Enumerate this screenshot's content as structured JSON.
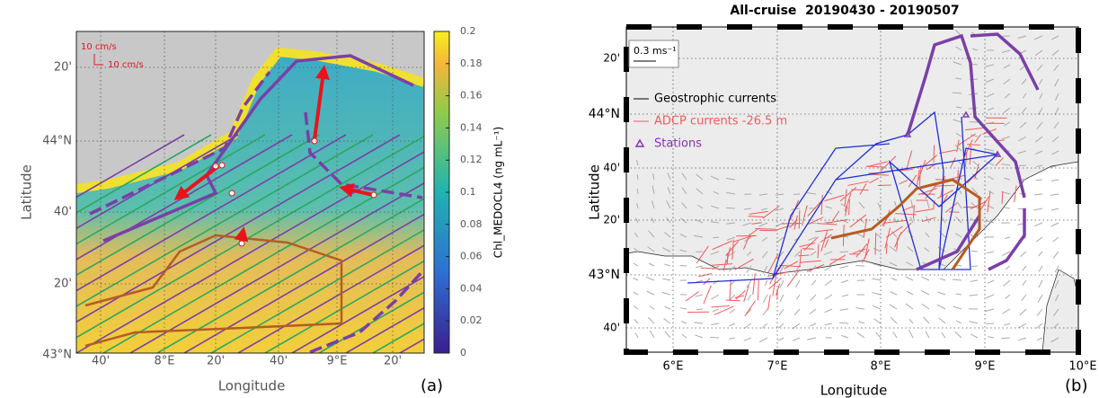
{
  "panel_a": {
    "tag": "(a)",
    "xlabel": "Longitude",
    "ylabel": "Latitude",
    "scale_labels": [
      "10 cm/s",
      "10 cm/s"
    ],
    "lat_labels": [
      "20'",
      "44°N",
      "40'",
      "20'",
      "43°N"
    ],
    "lon_labels": [
      "40'",
      "8°E",
      "20'",
      "40'",
      "9°E",
      "20'"
    ],
    "colorbar": {
      "label": "Chl_MEDOCL4 (ng mL⁻¹)",
      "ticks": [
        0,
        0.02,
        0.04,
        0.06,
        0.08,
        0.1,
        0.12,
        0.14,
        0.16,
        0.18,
        0.2
      ]
    }
  },
  "panel_b": {
    "title": "All-cruise  20190430 - 20190507",
    "tag": "(b)",
    "xlabel": "Longitude",
    "ylabel": "Latitude",
    "lat_labels": [
      "20'",
      "44°N",
      "40'",
      "20'",
      "43°N",
      "40'"
    ],
    "lon_labels": [
      "6°E",
      "7°E",
      "8°E",
      "9°E",
      "10°E"
    ],
    "scale_label": "0.3 ms⁻¹",
    "legend": [
      "Geostrophic currents",
      "ADCP currents -26.5 m",
      "Stations"
    ]
  }
}
